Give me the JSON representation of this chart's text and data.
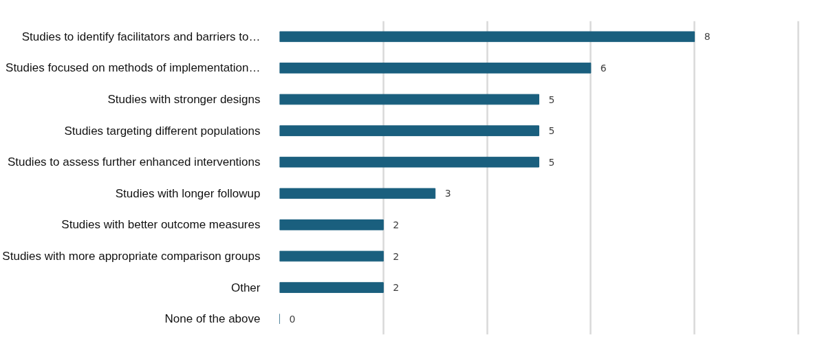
{
  "chart_data": {
    "type": "bar",
    "orientation": "horizontal",
    "categories": [
      "Studies to identify facilitators and barriers to…",
      "Studies focused on methods of implementation…",
      "Studies with stronger designs",
      "Studies targeting different populations",
      "Studies to assess further enhanced interventions",
      "Studies with longer followup",
      "Studies with better outcome measures",
      "Studies with more appropriate comparison groups",
      "Other",
      "None of the above"
    ],
    "values": [
      8,
      6,
      5,
      5,
      5,
      3,
      2,
      2,
      2,
      0
    ],
    "color": "#1a5f7e",
    "data_labels": true,
    "tick_labels": "y",
    "grid": "x"
  }
}
